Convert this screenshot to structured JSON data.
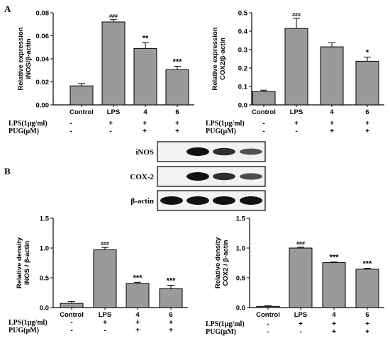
{
  "panel_labels": {
    "a": "A",
    "b": "B"
  },
  "colors": {
    "bar": "#9a9a9a",
    "axis": "#000000",
    "blot_bg": "#f2f2f2",
    "band": "#111111"
  },
  "treatment_table": {
    "row1_label": "LPS(1µg/ml)",
    "row1_values": [
      "-",
      "+",
      "+",
      "+"
    ],
    "row2_label": "PUG(µM)",
    "row2_values": [
      "-",
      "-",
      "+",
      "+"
    ]
  },
  "blot": {
    "labels": [
      "iNOS",
      "COX-2",
      "β-actin"
    ],
    "bands": [
      [
        0,
        1.0,
        0.8,
        0.55
      ],
      [
        0,
        1.0,
        0.8,
        0.6
      ],
      [
        1.0,
        1.0,
        1.0,
        1.0
      ]
    ]
  },
  "chart_data": [
    {
      "id": "c1",
      "type": "bar",
      "ylabel": "Relative expression iNOS/β-actin",
      "ylim": [
        0,
        0.08
      ],
      "yticks": [
        "0.00",
        "0.02",
        "0.04",
        "0.06",
        "0.08"
      ],
      "categories": [
        "Control",
        "LPS",
        "4",
        "6"
      ],
      "values": [
        0.0165,
        0.072,
        0.049,
        0.0305
      ],
      "errors": [
        0.002,
        0.002,
        0.005,
        0.003
      ],
      "sig": [
        "",
        "###",
        "**",
        "***"
      ]
    },
    {
      "id": "c2",
      "type": "bar",
      "ylabel": "Relative expression COX2/β-actin",
      "ylim": [
        0,
        0.5
      ],
      "yticks": [
        "0.0",
        "0.1",
        "0.2",
        "0.3",
        "0.4",
        "0.5"
      ],
      "categories": [
        "Control",
        "LPS",
        "4",
        "6"
      ],
      "values": [
        0.072,
        0.415,
        0.315,
        0.237
      ],
      "errors": [
        0.008,
        0.055,
        0.022,
        0.022
      ],
      "sig": [
        "",
        "###",
        "",
        "*"
      ]
    },
    {
      "id": "c3",
      "type": "bar",
      "ylabel": "Relative density iNOS / β-actin",
      "ylim": [
        0,
        1.5
      ],
      "yticks": [
        "0.0",
        "0.5",
        "1.0",
        "1.5"
      ],
      "categories": [
        "Control",
        "LPS",
        "4",
        "6"
      ],
      "values": [
        0.07,
        0.97,
        0.405,
        0.315
      ],
      "errors": [
        0.03,
        0.04,
        0.02,
        0.06
      ],
      "sig": [
        "",
        "###",
        "***",
        "***"
      ]
    },
    {
      "id": "c4",
      "type": "bar",
      "ylabel": "Relative density COX2 / β-actin",
      "ylim": [
        0,
        1.5
      ],
      "yticks": [
        "0.0",
        "0.5",
        "1.0",
        "1.5"
      ],
      "categories": [
        "Control",
        "LPS",
        "4",
        "6"
      ],
      "values": [
        0.02,
        1.0,
        0.755,
        0.645
      ],
      "errors": [
        0.01,
        0.015,
        0.01,
        0.015
      ],
      "sig": [
        "",
        "###",
        "***",
        "***"
      ]
    }
  ]
}
